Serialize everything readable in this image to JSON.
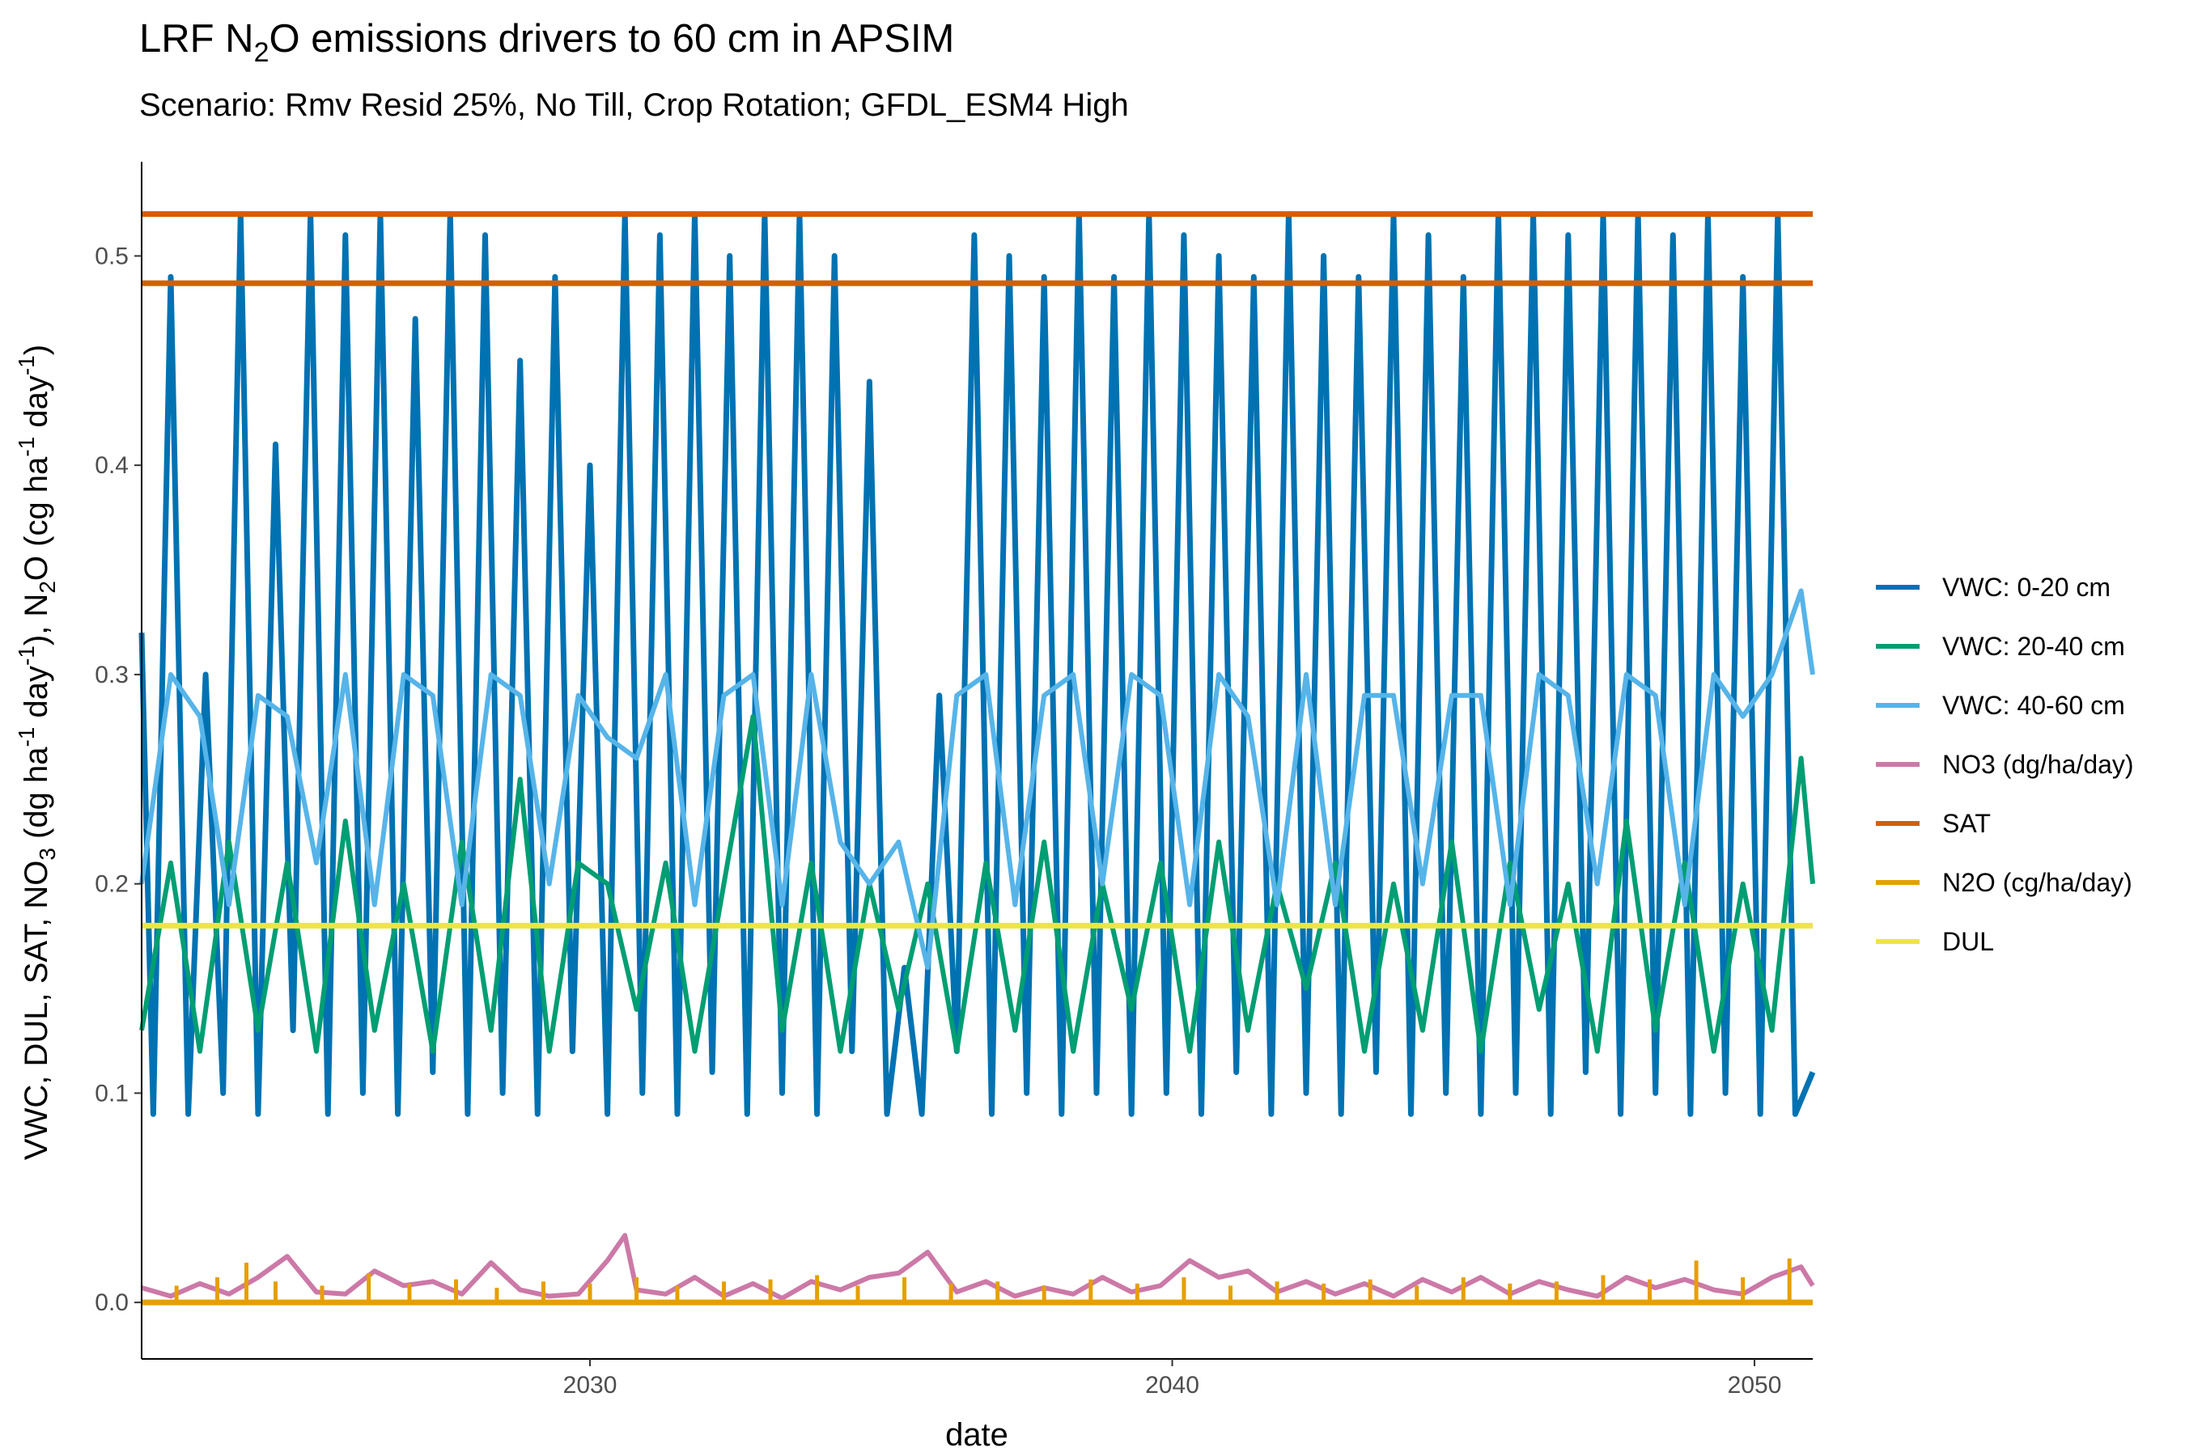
{
  "chart_data": {
    "type": "line",
    "title": {
      "prefix": "LRF N",
      "sub": "2",
      "suffix": "O emissions drivers to 60 cm in APSIM"
    },
    "subtitle": "Scenario: Rmv Resid 25%, No Till, Crop Rotation; GFDL_ESM4 High",
    "xlabel": "date",
    "ylabel": {
      "p1": "VWC, DUL, SAT, NO",
      "s1": "3",
      "p2": " (dg ha",
      "e1": "-1",
      "p3": " day",
      "e2": "-1",
      "p4": "), N",
      "s2": "2",
      "p5": "O  (cg ha",
      "e3": "-1",
      "p6": " day",
      "e4": "-1",
      "p7": ")"
    },
    "xlim": [
      2022.3,
      2051.0
    ],
    "ylim": [
      -0.027,
      0.545
    ],
    "x_ticks": [
      2030,
      2040,
      2050
    ],
    "x_tick_labels": [
      "2030",
      "2040",
      "2050"
    ],
    "y_ticks": [
      0.0,
      0.1,
      0.2,
      0.3,
      0.4,
      0.5
    ],
    "y_tick_labels": [
      "0.0",
      "0.1",
      "0.2",
      "0.3",
      "0.4",
      "0.5"
    ],
    "grid": false,
    "legend_position": "right",
    "series": [
      {
        "name": "VWC: 0-20 cm",
        "color": "#0072B2",
        "x": [
          2022.3,
          2022.5,
          2022.8,
          2023.1,
          2023.4,
          2023.7,
          2024.0,
          2024.3,
          2024.6,
          2024.9,
          2025.2,
          2025.5,
          2025.8,
          2026.1,
          2026.4,
          2026.7,
          2027.0,
          2027.3,
          2027.6,
          2027.9,
          2028.2,
          2028.5,
          2028.8,
          2029.1,
          2029.4,
          2029.7,
          2030.0,
          2030.3,
          2030.6,
          2030.9,
          2031.2,
          2031.5,
          2031.8,
          2032.1,
          2032.4,
          2032.7,
          2033.0,
          2033.3,
          2033.6,
          2033.9,
          2034.2,
          2034.5,
          2034.8,
          2035.1,
          2035.4,
          2035.7,
          2036.0,
          2036.3,
          2036.6,
          2036.9,
          2037.2,
          2037.5,
          2037.8,
          2038.1,
          2038.4,
          2038.7,
          2039.0,
          2039.3,
          2039.6,
          2039.9,
          2040.2,
          2040.5,
          2040.8,
          2041.1,
          2041.4,
          2041.7,
          2042.0,
          2042.3,
          2042.6,
          2042.9,
          2043.2,
          2043.5,
          2043.8,
          2044.1,
          2044.4,
          2044.7,
          2045.0,
          2045.3,
          2045.6,
          2045.9,
          2046.2,
          2046.5,
          2046.8,
          2047.1,
          2047.4,
          2047.7,
          2048.0,
          2048.3,
          2048.6,
          2048.9,
          2049.2,
          2049.5,
          2049.8,
          2050.1,
          2050.4,
          2050.7,
          2051.0
        ],
        "values": [
          0.32,
          0.09,
          0.49,
          0.09,
          0.3,
          0.1,
          0.52,
          0.09,
          0.41,
          0.13,
          0.52,
          0.09,
          0.51,
          0.1,
          0.52,
          0.09,
          0.47,
          0.11,
          0.52,
          0.09,
          0.51,
          0.1,
          0.45,
          0.09,
          0.49,
          0.12,
          0.4,
          0.09,
          0.52,
          0.1,
          0.51,
          0.09,
          0.52,
          0.11,
          0.5,
          0.09,
          0.52,
          0.1,
          0.52,
          0.09,
          0.5,
          0.12,
          0.44,
          0.09,
          0.16,
          0.09,
          0.29,
          0.12,
          0.51,
          0.09,
          0.5,
          0.1,
          0.49,
          0.09,
          0.52,
          0.1,
          0.49,
          0.09,
          0.52,
          0.1,
          0.51,
          0.09,
          0.5,
          0.11,
          0.49,
          0.09,
          0.52,
          0.1,
          0.5,
          0.09,
          0.49,
          0.11,
          0.52,
          0.09,
          0.51,
          0.1,
          0.49,
          0.09,
          0.52,
          0.1,
          0.52,
          0.09,
          0.51,
          0.11,
          0.52,
          0.09,
          0.52,
          0.1,
          0.51,
          0.09,
          0.52,
          0.1,
          0.49,
          0.09,
          0.52,
          0.09,
          0.11
        ]
      },
      {
        "name": "VWC: 20-40 cm",
        "color": "#009E73",
        "x": [
          2022.3,
          2022.8,
          2023.3,
          2023.8,
          2024.3,
          2024.8,
          2025.3,
          2025.8,
          2026.3,
          2026.8,
          2027.3,
          2027.8,
          2028.3,
          2028.8,
          2029.3,
          2029.8,
          2030.3,
          2030.8,
          2031.3,
          2031.8,
          2032.3,
          2032.8,
          2033.3,
          2033.8,
          2034.3,
          2034.8,
          2035.3,
          2035.8,
          2036.3,
          2036.8,
          2037.3,
          2037.8,
          2038.3,
          2038.8,
          2039.3,
          2039.8,
          2040.3,
          2040.8,
          2041.3,
          2041.8,
          2042.3,
          2042.8,
          2043.3,
          2043.8,
          2044.3,
          2044.8,
          2045.3,
          2045.8,
          2046.3,
          2046.8,
          2047.3,
          2047.8,
          2048.3,
          2048.8,
          2049.3,
          2049.8,
          2050.3,
          2050.8,
          2051.0
        ],
        "values": [
          0.13,
          0.21,
          0.12,
          0.22,
          0.13,
          0.21,
          0.12,
          0.23,
          0.13,
          0.2,
          0.12,
          0.22,
          0.13,
          0.25,
          0.12,
          0.21,
          0.2,
          0.14,
          0.21,
          0.12,
          0.2,
          0.28,
          0.13,
          0.21,
          0.12,
          0.2,
          0.14,
          0.2,
          0.12,
          0.21,
          0.13,
          0.22,
          0.12,
          0.2,
          0.14,
          0.21,
          0.12,
          0.22,
          0.13,
          0.2,
          0.15,
          0.21,
          0.12,
          0.2,
          0.13,
          0.22,
          0.12,
          0.21,
          0.14,
          0.2,
          0.12,
          0.23,
          0.13,
          0.21,
          0.12,
          0.2,
          0.13,
          0.26,
          0.2
        ]
      },
      {
        "name": "VWC: 40-60 cm",
        "color": "#56B4E9",
        "x": [
          2022.3,
          2022.8,
          2023.3,
          2023.8,
          2024.3,
          2024.8,
          2025.3,
          2025.8,
          2026.3,
          2026.8,
          2027.3,
          2027.8,
          2028.3,
          2028.8,
          2029.3,
          2029.8,
          2030.3,
          2030.8,
          2031.3,
          2031.8,
          2032.3,
          2032.8,
          2033.3,
          2033.8,
          2034.3,
          2034.8,
          2035.3,
          2035.8,
          2036.3,
          2036.8,
          2037.3,
          2037.8,
          2038.3,
          2038.8,
          2039.3,
          2039.8,
          2040.3,
          2040.8,
          2041.3,
          2041.8,
          2042.3,
          2042.8,
          2043.3,
          2043.8,
          2044.3,
          2044.8,
          2045.3,
          2045.8,
          2046.3,
          2046.8,
          2047.3,
          2047.8,
          2048.3,
          2048.8,
          2049.3,
          2049.8,
          2050.3,
          2050.8,
          2051.0
        ],
        "values": [
          0.2,
          0.3,
          0.28,
          0.19,
          0.29,
          0.28,
          0.21,
          0.3,
          0.19,
          0.3,
          0.29,
          0.19,
          0.3,
          0.29,
          0.2,
          0.29,
          0.27,
          0.26,
          0.3,
          0.19,
          0.29,
          0.3,
          0.19,
          0.3,
          0.22,
          0.2,
          0.22,
          0.16,
          0.29,
          0.3,
          0.19,
          0.29,
          0.3,
          0.2,
          0.3,
          0.29,
          0.19,
          0.3,
          0.28,
          0.19,
          0.3,
          0.19,
          0.29,
          0.29,
          0.2,
          0.29,
          0.29,
          0.19,
          0.3,
          0.29,
          0.2,
          0.3,
          0.29,
          0.19,
          0.3,
          0.28,
          0.3,
          0.34,
          0.3
        ]
      },
      {
        "name": "NO3 (dg/ha/day)",
        "color": "#CC79A7",
        "x": [
          2022.3,
          2022.8,
          2023.3,
          2023.8,
          2024.3,
          2024.8,
          2025.3,
          2025.8,
          2026.3,
          2026.8,
          2027.3,
          2027.8,
          2028.3,
          2028.8,
          2029.3,
          2029.8,
          2030.3,
          2030.6,
          2030.8,
          2031.3,
          2031.8,
          2032.3,
          2032.8,
          2033.3,
          2033.8,
          2034.3,
          2034.8,
          2035.3,
          2035.8,
          2036.3,
          2036.8,
          2037.3,
          2037.8,
          2038.3,
          2038.8,
          2039.3,
          2039.8,
          2040.3,
          2040.8,
          2041.3,
          2041.8,
          2042.3,
          2042.8,
          2043.3,
          2043.8,
          2044.3,
          2044.8,
          2045.3,
          2045.8,
          2046.3,
          2046.8,
          2047.3,
          2047.8,
          2048.3,
          2048.8,
          2049.3,
          2049.8,
          2050.3,
          2050.8,
          2051.0
        ],
        "values": [
          0.007,
          0.003,
          0.009,
          0.004,
          0.012,
          0.022,
          0.005,
          0.004,
          0.015,
          0.008,
          0.01,
          0.004,
          0.019,
          0.006,
          0.003,
          0.004,
          0.02,
          0.032,
          0.006,
          0.004,
          0.012,
          0.003,
          0.009,
          0.002,
          0.01,
          0.006,
          0.012,
          0.014,
          0.024,
          0.005,
          0.01,
          0.003,
          0.007,
          0.004,
          0.012,
          0.005,
          0.008,
          0.02,
          0.012,
          0.015,
          0.005,
          0.01,
          0.004,
          0.009,
          0.003,
          0.011,
          0.005,
          0.012,
          0.004,
          0.01,
          0.006,
          0.003,
          0.012,
          0.007,
          0.011,
          0.006,
          0.004,
          0.012,
          0.017,
          0.008
        ]
      },
      {
        "name": "SAT",
        "color": "#D55E00",
        "lines": [
          0.52,
          0.487
        ]
      },
      {
        "name": "N2O (cg/ha/day)",
        "color": "#E69F00",
        "spikes_x": [
          2022.9,
          2023.6,
          2024.1,
          2024.6,
          2025.4,
          2026.2,
          2026.9,
          2027.7,
          2028.4,
          2029.2,
          2030.0,
          2030.8,
          2031.5,
          2032.3,
          2033.1,
          2033.9,
          2034.6,
          2035.4,
          2036.2,
          2037.0,
          2037.8,
          2038.6,
          2039.4,
          2040.2,
          2041.0,
          2041.8,
          2042.6,
          2043.4,
          2044.2,
          2045.0,
          2045.8,
          2046.6,
          2047.4,
          2048.2,
          2049.0,
          2049.8,
          2050.6
        ],
        "spikes_y": [
          0.008,
          0.012,
          0.019,
          0.01,
          0.008,
          0.014,
          0.009,
          0.011,
          0.007,
          0.01,
          0.009,
          0.012,
          0.008,
          0.01,
          0.011,
          0.013,
          0.008,
          0.012,
          0.009,
          0.01,
          0.008,
          0.011,
          0.009,
          0.012,
          0.008,
          0.01,
          0.009,
          0.011,
          0.008,
          0.012,
          0.009,
          0.01,
          0.013,
          0.011,
          0.02,
          0.012,
          0.021
        ]
      },
      {
        "name": "DUL",
        "color": "#F0E442",
        "lines": [
          0.18
        ]
      }
    ],
    "legend": [
      "VWC: 0-20 cm",
      "VWC: 20-40 cm",
      "VWC: 40-60 cm",
      "NO3 (dg/ha/day)",
      "SAT",
      "N2O (cg/ha/day)",
      "DUL"
    ],
    "legend_colors": [
      "#0072B2",
      "#009E73",
      "#56B4E9",
      "#CC79A7",
      "#D55E00",
      "#E69F00",
      "#F0E442"
    ]
  }
}
